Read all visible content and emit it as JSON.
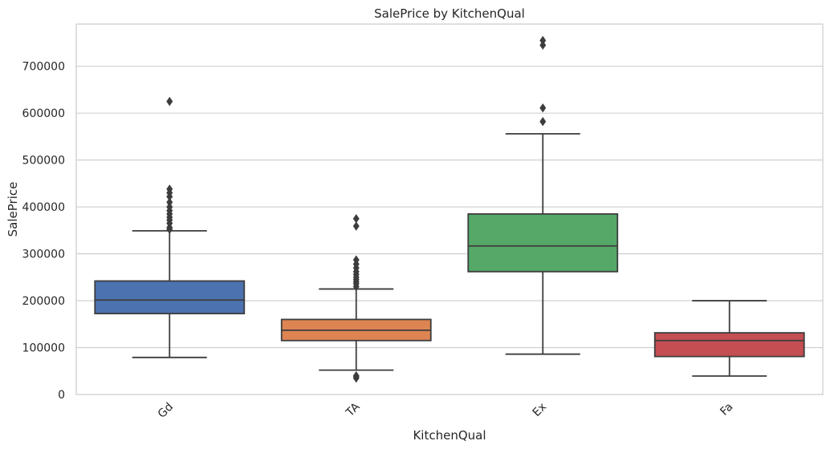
{
  "chart_data": {
    "type": "box",
    "title": "SalePrice by KitchenQual",
    "xlabel": "KitchenQual",
    "ylabel": "SalePrice",
    "ylim": [
      0,
      790000
    ],
    "yticks": [
      0,
      100000,
      200000,
      300000,
      400000,
      500000,
      600000,
      700000
    ],
    "ytick_labels": [
      "0",
      "100000",
      "200000",
      "300000",
      "400000",
      "500000",
      "600000",
      "700000"
    ],
    "grid": "horizontal",
    "categories": [
      "Gd",
      "TA",
      "Ex",
      "Fa"
    ],
    "boxes": [
      {
        "category": "Gd",
        "color": "#4c72b0",
        "whisker_low": 79000,
        "q1": 172500,
        "median": 201400,
        "q3": 242000,
        "whisker_high": 349000,
        "outliers": [
          352000,
          356000,
          365000,
          372000,
          378000,
          385000,
          392000,
          400000,
          410000,
          422000,
          430000,
          438000,
          625000
        ]
      },
      {
        "category": "TA",
        "color": "#dd8452",
        "whisker_low": 52000,
        "q1": 115000,
        "median": 137000,
        "q3": 160000,
        "whisker_high": 225000,
        "outliers": [
          34900,
          37900,
          40000,
          230000,
          236000,
          240000,
          245000,
          250000,
          256000,
          262000,
          270000,
          278000,
          287000,
          359000,
          375000
        ]
      },
      {
        "category": "Ex",
        "color": "#55a868",
        "whisker_low": 86000,
        "q1": 262000,
        "median": 316750,
        "q3": 385000,
        "whisker_high": 556000,
        "outliers": [
          582000,
          611000,
          745000,
          755000
        ]
      },
      {
        "category": "Fa",
        "color": "#c44e52",
        "whisker_low": 39300,
        "q1": 81000,
        "median": 115000,
        "q3": 131500,
        "whisker_high": 200000,
        "outliers": []
      }
    ]
  }
}
